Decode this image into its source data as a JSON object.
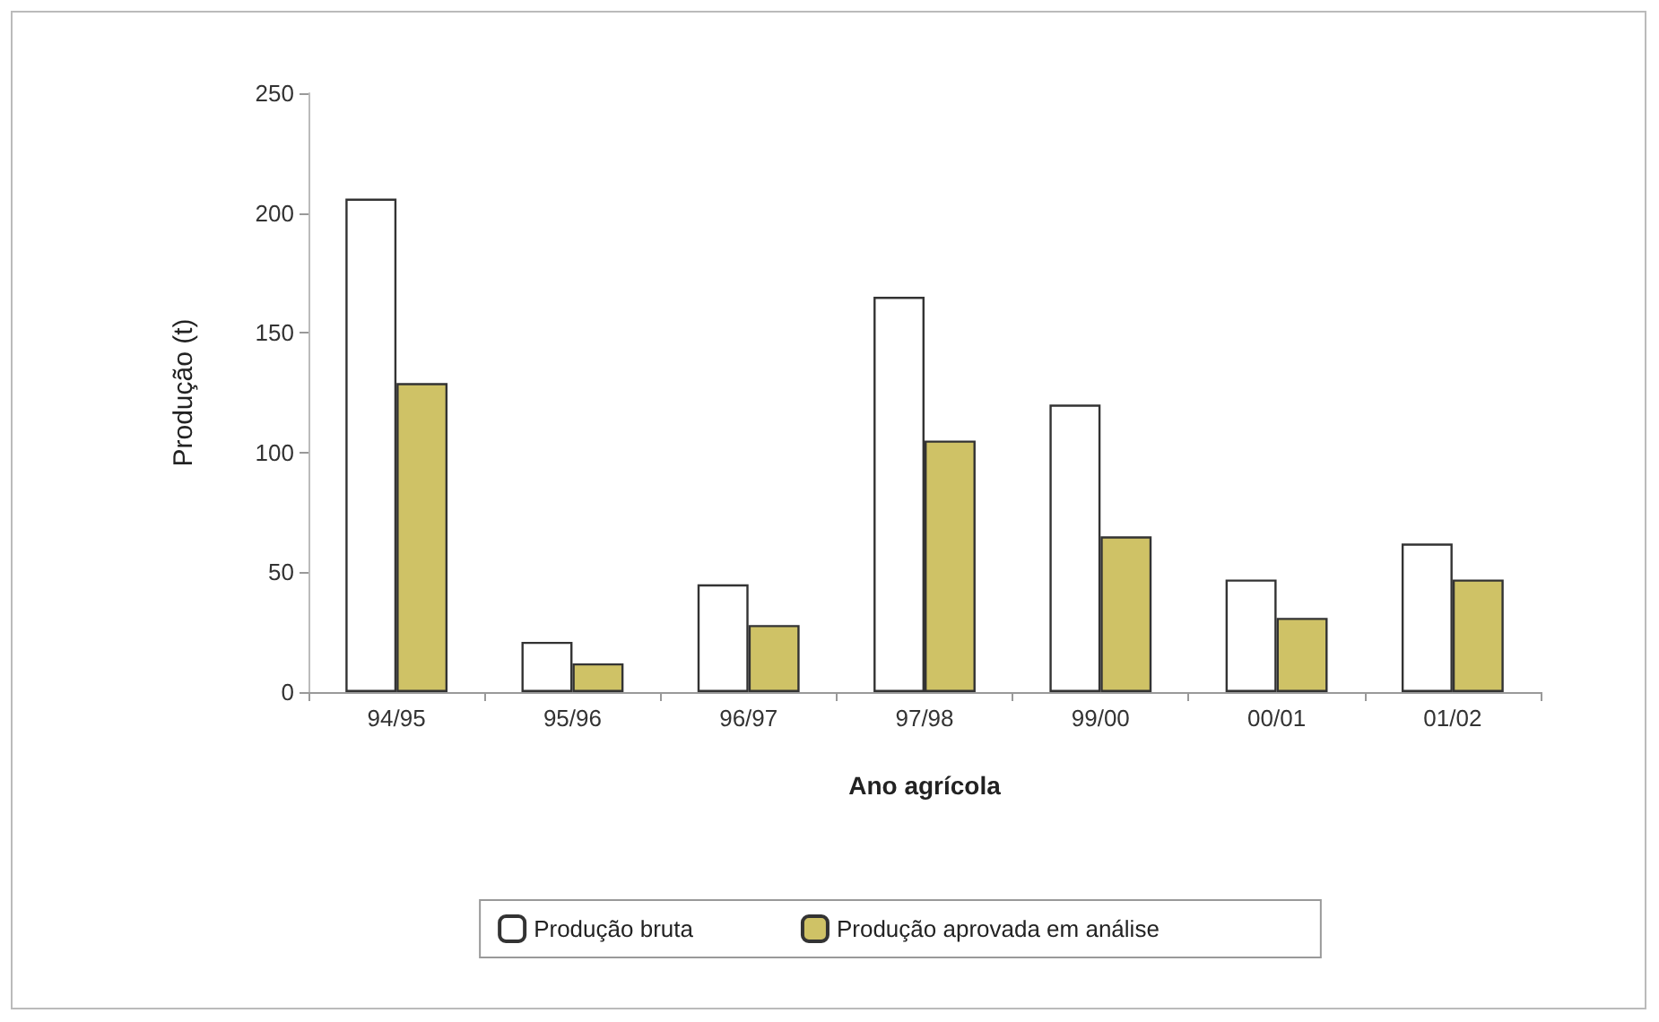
{
  "chart_data": {
    "type": "bar",
    "xlabel": "Ano agrícola",
    "ylabel": "Produção (t)",
    "categories": [
      "94/95",
      "95/96",
      "96/97",
      "97/98",
      "99/00",
      "00/01",
      "01/02"
    ],
    "series": [
      {
        "name": "Produção bruta",
        "color": "#ffffff",
        "values": [
          206,
          21,
          45,
          165,
          120,
          47,
          62
        ]
      },
      {
        "name": "Produção aprovada em análise",
        "color": "#cfc266",
        "values": [
          129,
          12,
          28,
          105,
          65,
          31,
          47
        ]
      }
    ],
    "ylim": [
      0,
      250
    ],
    "yticks": [
      0,
      50,
      100,
      150,
      200,
      250
    ],
    "grid": false,
    "legend": "bottom"
  }
}
